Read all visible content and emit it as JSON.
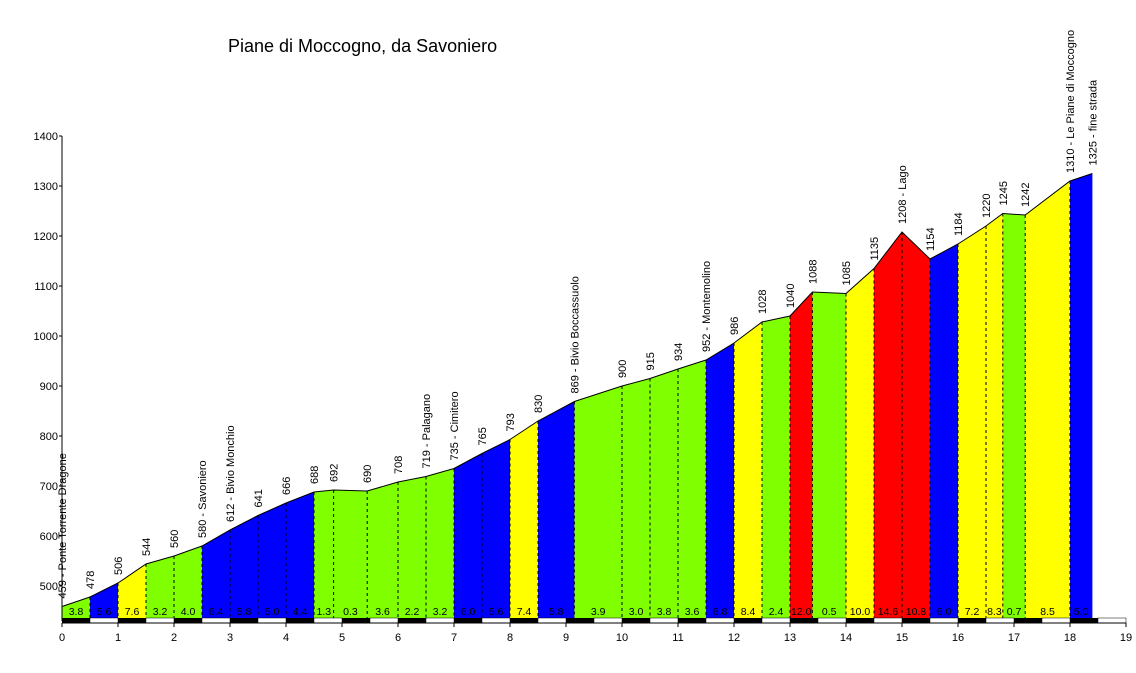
{
  "chart_data": {
    "type": "area",
    "title": "Piane di Moccogno, da Savoniero",
    "xlabel": "",
    "ylabel": "",
    "xlim": [
      0,
      19
    ],
    "ylim": [
      430,
      1400
    ],
    "x_ticks": [
      0,
      1,
      2,
      3,
      4,
      5,
      6,
      7,
      8,
      9,
      10,
      11,
      12,
      13,
      14,
      15,
      16,
      17,
      18,
      19
    ],
    "y_ticks": [
      500,
      600,
      700,
      800,
      900,
      1000,
      1100,
      1200,
      1300,
      1400
    ],
    "points": [
      {
        "x": 0.0,
        "y": 459,
        "label": "459 - Ponte Torrente Dragone"
      },
      {
        "x": 0.5,
        "y": 478,
        "label": "478"
      },
      {
        "x": 1.0,
        "y": 506,
        "label": "506"
      },
      {
        "x": 1.5,
        "y": 544,
        "label": "544"
      },
      {
        "x": 2.0,
        "y": 560,
        "label": "560"
      },
      {
        "x": 2.5,
        "y": 580,
        "label": "580 - Savoniero"
      },
      {
        "x": 3.0,
        "y": 612,
        "label": "612 - Bivio Monchio"
      },
      {
        "x": 3.5,
        "y": 641,
        "label": "641"
      },
      {
        "x": 4.0,
        "y": 666,
        "label": "666"
      },
      {
        "x": 4.5,
        "y": 688,
        "label": "688"
      },
      {
        "x": 4.85,
        "y": 692,
        "label": "692"
      },
      {
        "x": 5.45,
        "y": 690,
        "label": "690"
      },
      {
        "x": 6.0,
        "y": 708,
        "label": "708"
      },
      {
        "x": 6.5,
        "y": 719,
        "label": "719 - Palagano"
      },
      {
        "x": 7.0,
        "y": 735,
        "label": "735 - Cimitero"
      },
      {
        "x": 7.5,
        "y": 765,
        "label": "765"
      },
      {
        "x": 8.0,
        "y": 793,
        "label": "793"
      },
      {
        "x": 8.5,
        "y": 830,
        "label": "830"
      },
      {
        "x": 9.15,
        "y": 869,
        "label": "869 - Bivio Boccassuolo"
      },
      {
        "x": 10.0,
        "y": 900,
        "label": "900"
      },
      {
        "x": 10.5,
        "y": 915,
        "label": "915"
      },
      {
        "x": 11.0,
        "y": 934,
        "label": "934"
      },
      {
        "x": 11.5,
        "y": 952,
        "label": "952 - Montemolino"
      },
      {
        "x": 12.0,
        "y": 986,
        "label": "986"
      },
      {
        "x": 12.5,
        "y": 1028,
        "label": "1028"
      },
      {
        "x": 13.0,
        "y": 1040,
        "label": "1040"
      },
      {
        "x": 13.4,
        "y": 1088,
        "label": "1088"
      },
      {
        "x": 14.0,
        "y": 1085,
        "label": "1085"
      },
      {
        "x": 14.5,
        "y": 1135,
        "label": "1135"
      },
      {
        "x": 15.0,
        "y": 1208,
        "label": "1208 - Lago"
      },
      {
        "x": 15.5,
        "y": 1154,
        "label": "1154"
      },
      {
        "x": 16.0,
        "y": 1184,
        "label": "1184"
      },
      {
        "x": 16.5,
        "y": 1220,
        "label": "1220"
      },
      {
        "x": 16.8,
        "y": 1245,
        "label": "1245"
      },
      {
        "x": 17.2,
        "y": 1242,
        "label": "1242"
      },
      {
        "x": 18.0,
        "y": 1310,
        "label": "1310 - Le Piane di Moccogno"
      },
      {
        "x": 18.4,
        "y": 1325,
        "label": "1325 - fine strada"
      }
    ],
    "segments": [
      {
        "grade": "3.8",
        "color": "#80ff00"
      },
      {
        "grade": "5.6",
        "color": "#0000ff"
      },
      {
        "grade": "7.6",
        "color": "#ffff00"
      },
      {
        "grade": "3.2",
        "color": "#80ff00"
      },
      {
        "grade": "4.0",
        "color": "#80ff00"
      },
      {
        "grade": "6.4",
        "color": "#0000ff"
      },
      {
        "grade": "5.8",
        "color": "#0000ff"
      },
      {
        "grade": "5.0",
        "color": "#0000ff"
      },
      {
        "grade": "4.4",
        "color": "#0000ff"
      },
      {
        "grade": "1.3",
        "color": "#80ff00"
      },
      {
        "grade": "0.3",
        "color": "#80ff00"
      },
      {
        "grade": "3.6",
        "color": "#80ff00"
      },
      {
        "grade": "2.2",
        "color": "#80ff00"
      },
      {
        "grade": "3.2",
        "color": "#80ff00"
      },
      {
        "grade": "6.0",
        "color": "#0000ff"
      },
      {
        "grade": "5.6",
        "color": "#0000ff"
      },
      {
        "grade": "7.4",
        "color": "#ffff00"
      },
      {
        "grade": "5.8",
        "color": "#0000ff"
      },
      {
        "grade": "3.9",
        "color": "#80ff00"
      },
      {
        "grade": "3.0",
        "color": "#80ff00"
      },
      {
        "grade": "3.8",
        "color": "#80ff00"
      },
      {
        "grade": "3.6",
        "color": "#80ff00"
      },
      {
        "grade": "6.8",
        "color": "#0000ff"
      },
      {
        "grade": "8.4",
        "color": "#ffff00"
      },
      {
        "grade": "2.4",
        "color": "#80ff00"
      },
      {
        "grade": "12.0",
        "color": "#ff0000"
      },
      {
        "grade": "0.5",
        "color": "#80ff00"
      },
      {
        "grade": "10.0",
        "color": "#ffff00"
      },
      {
        "grade": "14.6",
        "color": "#ff0000"
      },
      {
        "grade": "10.8",
        "color": "#ff0000"
      },
      {
        "grade": "6.0",
        "color": "#0000ff"
      },
      {
        "grade": "7.2",
        "color": "#ffff00"
      },
      {
        "grade": "8.3",
        "color": "#ffff00"
      },
      {
        "grade": "0.7",
        "color": "#80ff00"
      },
      {
        "grade": "8.5",
        "color": "#ffff00"
      },
      {
        "grade": "5.0",
        "color": "#0000ff"
      }
    ],
    "grid": false,
    "legend": "none"
  }
}
